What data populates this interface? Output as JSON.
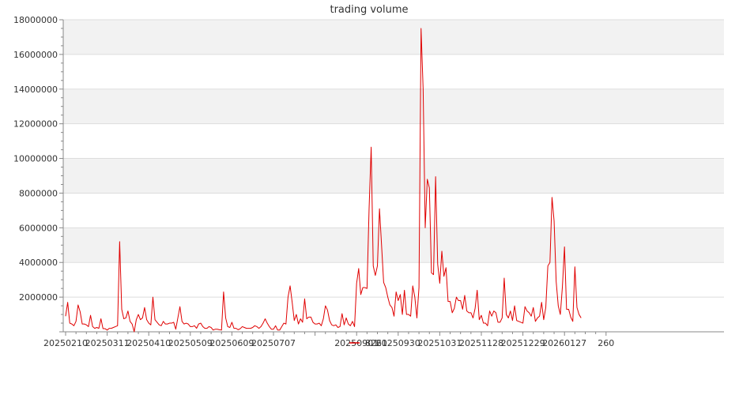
{
  "chart_data": {
    "type": "line",
    "title": "trading volume",
    "xlabel": "",
    "ylabel": "",
    "ylim": [
      0,
      18000000
    ],
    "yticks": [
      2000000,
      4000000,
      6000000,
      8000000,
      10000000,
      12000000,
      14000000,
      16000000,
      18000000
    ],
    "ytick_labels": [
      "2000000",
      "4000000",
      "6000000",
      "8000000",
      "10000000",
      "12000000",
      "14000000",
      "16000000",
      "18000000"
    ],
    "xtick_labels": [
      {
        "label": "20250210",
        "index": 0
      },
      {
        "label": "20250311",
        "index": 20
      },
      {
        "label": "20250410",
        "index": 40
      },
      {
        "label": "20250509",
        "index": 60
      },
      {
        "label": "20250609",
        "index": 80
      },
      {
        "label": "20250707",
        "index": 100
      },
      {
        "label": "20250901",
        "index": 140
      },
      {
        "label": "20250930",
        "index": 160
      },
      {
        "label": "20251031",
        "index": 180
      },
      {
        "label": "20251128",
        "index": 200
      },
      {
        "label": "20251229",
        "index": 220
      },
      {
        "label": "20260127",
        "index": 240
      },
      {
        "label": "260",
        "index": 260
      }
    ],
    "grid": "horizontal alternating bands",
    "legend_position": "bottom-center",
    "series": [
      {
        "name": "8261",
        "color": "#e00000",
        "values": [
          900000,
          1700000,
          500000,
          450000,
          350000,
          600000,
          1550000,
          1150000,
          450000,
          450000,
          400000,
          300000,
          950000,
          300000,
          200000,
          250000,
          200000,
          750000,
          180000,
          180000,
          100000,
          200000,
          200000,
          250000,
          300000,
          350000,
          5200000,
          1300000,
          750000,
          800000,
          1200000,
          600000,
          450000,
          0,
          700000,
          1000000,
          700000,
          800000,
          1400000,
          700000,
          500000,
          400000,
          2000000,
          700000,
          550000,
          400000,
          350000,
          600000,
          450000,
          450000,
          500000,
          500000,
          550000,
          150000,
          800000,
          1450000,
          600000,
          450000,
          500000,
          450000,
          300000,
          300000,
          350000,
          200000,
          450000,
          500000,
          300000,
          200000,
          200000,
          300000,
          250000,
          100000,
          150000,
          150000,
          120000,
          100000,
          2300000,
          800000,
          300000,
          250000,
          550000,
          200000,
          200000,
          120000,
          180000,
          300000,
          250000,
          200000,
          200000,
          200000,
          250000,
          350000,
          300000,
          200000,
          300000,
          500000,
          750000,
          500000,
          300000,
          150000,
          150000,
          350000,
          100000,
          100000,
          300000,
          500000,
          450000,
          2000000,
          2650000,
          1700000,
          650000,
          1000000,
          450000,
          750000,
          550000,
          1900000,
          750000,
          850000,
          850000,
          550000,
          450000,
          450000,
          500000,
          350000,
          750000,
          1500000,
          1250000,
          650000,
          400000,
          350000,
          400000,
          250000,
          300000,
          1050000,
          400000,
          800000,
          450000,
          350000,
          600000,
          300000,
          2800000,
          3650000,
          2150000,
          2550000,
          2550000,
          2500000,
          7100000,
          10650000,
          3800000,
          3250000,
          3800000,
          7100000,
          5000000,
          2850000,
          2550000,
          2000000,
          1550000,
          1400000,
          900000,
          2300000,
          1800000,
          2150000,
          1000000,
          2400000,
          1000000,
          1000000,
          900000,
          2650000,
          2000000,
          800000,
          2550000,
          17500000,
          14000000,
          6000000,
          8800000,
          8300000,
          3400000,
          3300000,
          8950000,
          3900000,
          2800000,
          4650000,
          3200000,
          3700000,
          1750000,
          1750000,
          1100000,
          1350000,
          2000000,
          1800000,
          1800000,
          1300000,
          2100000,
          1200000,
          1100000,
          1100000,
          800000,
          1350000,
          2400000,
          700000,
          950000,
          500000,
          500000,
          350000,
          1200000,
          900000,
          1200000,
          1100000,
          550000,
          550000,
          800000,
          3100000,
          1000000,
          800000,
          1200000,
          650000,
          1500000,
          650000,
          600000,
          550000,
          500000,
          1450000,
          1200000,
          1100000,
          900000,
          1400000,
          600000,
          800000,
          900000,
          1700000,
          700000,
          1400000,
          3800000,
          4000000,
          7750000,
          6400000,
          2900000,
          1500000,
          1000000,
          2600000,
          4900000,
          1300000,
          1300000,
          850000,
          600000,
          3750000,
          1400000,
          1000000,
          800000
        ]
      }
    ]
  }
}
